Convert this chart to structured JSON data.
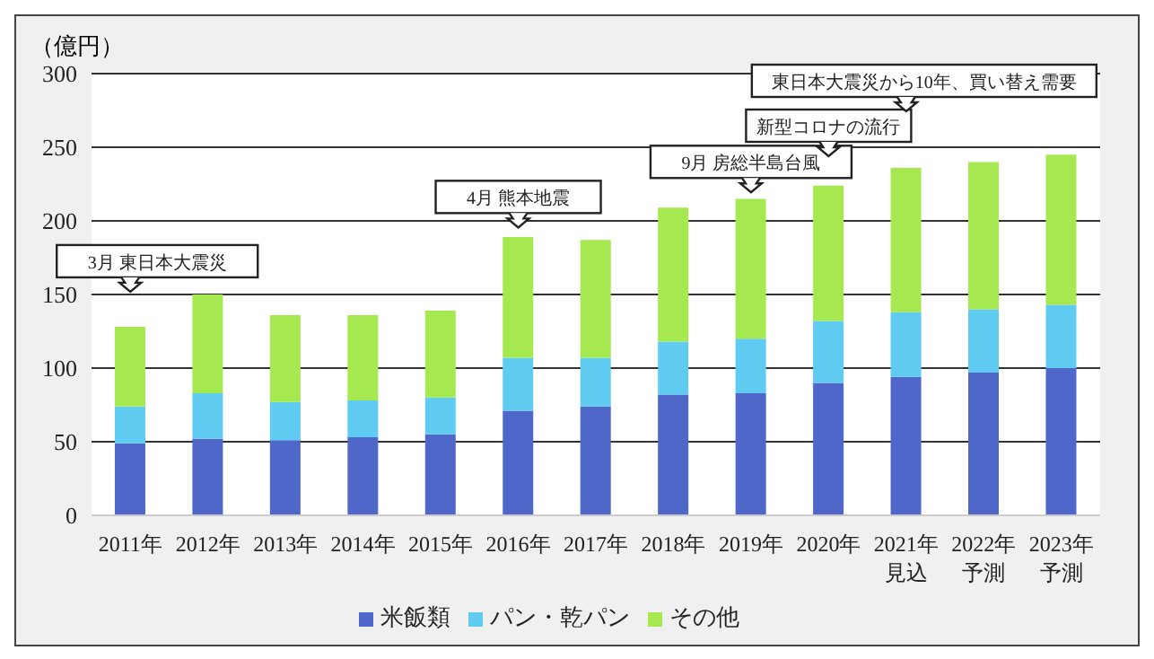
{
  "chart_data": {
    "type": "bar",
    "stacked": true,
    "ylabel": "（億円）",
    "categories": [
      "2011年",
      "2012年",
      "2013年",
      "2014年",
      "2015年",
      "2016年",
      "2017年",
      "2018年",
      "2019年",
      "2020年",
      "2021年見込",
      "2022年予測",
      "2023年予測"
    ],
    "series": [
      {
        "name": "米飯類",
        "color": "#4f67c8",
        "values": [
          49,
          52,
          51,
          53,
          55,
          71,
          74,
          82,
          83,
          90,
          94,
          97,
          100
        ]
      },
      {
        "name": "パン・乾パン",
        "color": "#5fcbf0",
        "values": [
          25,
          31,
          26,
          25,
          25,
          36,
          33,
          36,
          37,
          42,
          44,
          43,
          43
        ]
      },
      {
        "name": "その他",
        "color": "#a6e84f",
        "values": [
          54,
          67,
          59,
          58,
          59,
          82,
          80,
          91,
          95,
          92,
          98,
          100,
          102
        ]
      }
    ],
    "ylim": [
      0,
      300
    ],
    "yticks": [
      0,
      50,
      100,
      150,
      200,
      250,
      300
    ],
    "grid": "y",
    "legend": "bottom",
    "annotations": [
      {
        "text": "3月  東日本大震災",
        "x": "2011年",
        "y": 128
      },
      {
        "text": "4月  熊本地震",
        "x": "2016年",
        "y": 189
      },
      {
        "text": "9月  房総半島台風",
        "x": "2019年",
        "y": 215
      },
      "新型コロナの流行",
      "東日本大震災から10年、買い替え需要"
    ]
  }
}
